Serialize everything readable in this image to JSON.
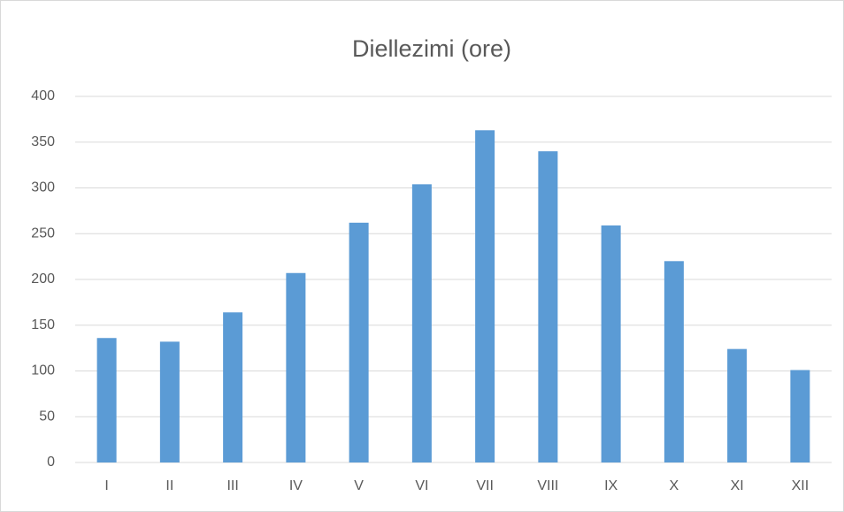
{
  "chart_data": {
    "type": "bar",
    "title": "Diellezimi (ore)",
    "categories": [
      "I",
      "II",
      "III",
      "IV",
      "V",
      "VI",
      "VII",
      "VIII",
      "IX",
      "X",
      "XI",
      "XII"
    ],
    "values": [
      136,
      132,
      164,
      207,
      262,
      304,
      363,
      340,
      259,
      220,
      124,
      101
    ],
    "color": "#5b9bd5",
    "ylim": [
      0,
      400
    ],
    "yticks": [
      0,
      50,
      100,
      150,
      200,
      250,
      300,
      350,
      400
    ],
    "grid": true
  }
}
